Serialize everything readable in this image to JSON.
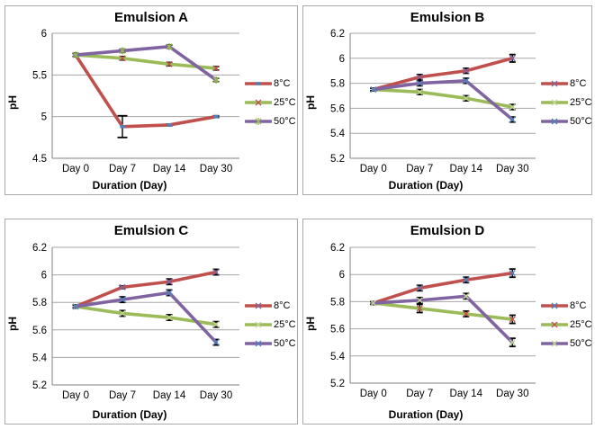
{
  "page": {
    "background": "#FFFFFF"
  },
  "colors": {
    "grid": "#A6A6A6",
    "axis": "#808080",
    "error_bar": "#000000",
    "panel_border": "#A9A9A9",
    "series_red": "#C0504D",
    "series_green": "#9BBB59",
    "series_purple": "#8064A2"
  },
  "chart_data": [
    {
      "type": "line",
      "title": "Emulsion A",
      "xlabel": "Duration (Day)",
      "ylabel": "pH",
      "categories": [
        "Day 0",
        "Day 7",
        "Day 14",
        "Day 30"
      ],
      "ylim": [
        4.5,
        6.0
      ],
      "yticks": [
        4.5,
        5.0,
        5.5,
        6.0
      ],
      "ytick_labels": [
        "4.5",
        "5",
        "5.5",
        "6"
      ],
      "grid": true,
      "legend_position": "right",
      "series": [
        {
          "name": "8°C",
          "color": "#C0504D",
          "marker": "square",
          "marker_color": "#4F81BD",
          "values": [
            5.74,
            4.88,
            4.9,
            5.0
          ],
          "errors": [
            0.02,
            0.13,
            0.01,
            0.01
          ]
        },
        {
          "name": "25°C",
          "color": "#9BBB59",
          "marker": "x",
          "marker_color": "#C0504D",
          "values": [
            5.74,
            5.7,
            5.63,
            5.58
          ],
          "errors": [
            0.02,
            0.02,
            0.02,
            0.02
          ]
        },
        {
          "name": "50°C",
          "color": "#8064A2",
          "marker": "star",
          "marker_color": "#9BBB59",
          "values": [
            5.74,
            5.79,
            5.84,
            5.44
          ],
          "errors": [
            0.02,
            0.02,
            0.02,
            0.02
          ]
        }
      ]
    },
    {
      "type": "line",
      "title": "Emulsion B",
      "xlabel": "Duration (Day)",
      "ylabel": "pH",
      "categories": [
        "Day 0",
        "Day 7",
        "Day 14",
        "Day 30"
      ],
      "ylim": [
        5.2,
        6.2
      ],
      "yticks": [
        5.2,
        5.4,
        5.6,
        5.8,
        6.0,
        6.2
      ],
      "ytick_labels": [
        "5.2",
        "5.4",
        "5.6",
        "5.8",
        "6",
        "6.2"
      ],
      "grid": true,
      "legend_position": "right",
      "series": [
        {
          "name": "8°C",
          "color": "#C0504D",
          "marker": "x",
          "marker_color": "#8064A2",
          "values": [
            5.75,
            5.85,
            5.9,
            6.0
          ],
          "errors": [
            0.01,
            0.02,
            0.02,
            0.03
          ]
        },
        {
          "name": "25°C",
          "color": "#9BBB59",
          "marker": "x",
          "marker_color": "#C3D69B",
          "values": [
            5.75,
            5.73,
            5.68,
            5.61
          ],
          "errors": [
            0.01,
            0.02,
            0.02,
            0.02
          ]
        },
        {
          "name": "50°C",
          "color": "#8064A2",
          "marker": "x",
          "marker_color": "#4F81BD",
          "values": [
            5.75,
            5.8,
            5.82,
            5.51
          ],
          "errors": [
            0.01,
            0.02,
            0.02,
            0.02
          ]
        }
      ]
    },
    {
      "type": "line",
      "title": "Emulsion C",
      "xlabel": "Duration (Day)",
      "ylabel": "pH",
      "categories": [
        "Day 0",
        "Day 7",
        "Day 14",
        "Day 30"
      ],
      "ylim": [
        5.2,
        6.2
      ],
      "yticks": [
        5.2,
        5.4,
        5.6,
        5.8,
        6.0,
        6.2
      ],
      "ytick_labels": [
        "5.2",
        "5.4",
        "5.6",
        "5.8",
        "6",
        "6.2"
      ],
      "grid": true,
      "legend_position": "right",
      "series": [
        {
          "name": "8°C",
          "color": "#C0504D",
          "marker": "x",
          "marker_color": "#8064A2",
          "values": [
            5.77,
            5.91,
            5.95,
            6.02
          ],
          "errors": [
            0.01,
            0.01,
            0.02,
            0.02
          ]
        },
        {
          "name": "25°C",
          "color": "#9BBB59",
          "marker": "x",
          "marker_color": "#C3D69B",
          "values": [
            5.77,
            5.72,
            5.69,
            5.64
          ],
          "errors": [
            0.01,
            0.02,
            0.02,
            0.02
          ]
        },
        {
          "name": "50°C",
          "color": "#8064A2",
          "marker": "x",
          "marker_color": "#4F81BD",
          "values": [
            5.77,
            5.82,
            5.87,
            5.51
          ],
          "errors": [
            0.01,
            0.02,
            0.02,
            0.02
          ]
        }
      ]
    },
    {
      "type": "line",
      "title": "Emulsion D",
      "xlabel": "Duration (Day)",
      "ylabel": "pH",
      "categories": [
        "Day 0",
        "Day 7",
        "Day 14",
        "Day 30"
      ],
      "ylim": [
        5.2,
        6.2
      ],
      "yticks": [
        5.2,
        5.4,
        5.6,
        5.8,
        6.0,
        6.2
      ],
      "ytick_labels": [
        "5.2",
        "5.4",
        "5.6",
        "5.8",
        "6",
        "6.2"
      ],
      "grid": true,
      "legend_position": "right",
      "series": [
        {
          "name": "8°C",
          "color": "#C0504D",
          "marker": "x",
          "marker_color": "#4F81BD",
          "values": [
            5.79,
            5.9,
            5.96,
            6.01
          ],
          "errors": [
            0.01,
            0.02,
            0.02,
            0.03
          ]
        },
        {
          "name": "25°C",
          "color": "#9BBB59",
          "marker": "x",
          "marker_color": "#C0504D",
          "values": [
            5.79,
            5.75,
            5.71,
            5.67
          ],
          "errors": [
            0.01,
            0.03,
            0.02,
            0.03
          ]
        },
        {
          "name": "50°C",
          "color": "#8064A2",
          "marker": "x",
          "marker_color": "#C3D69B",
          "values": [
            5.79,
            5.81,
            5.84,
            5.5
          ],
          "errors": [
            0.01,
            0.02,
            0.02,
            0.03
          ]
        }
      ]
    }
  ]
}
